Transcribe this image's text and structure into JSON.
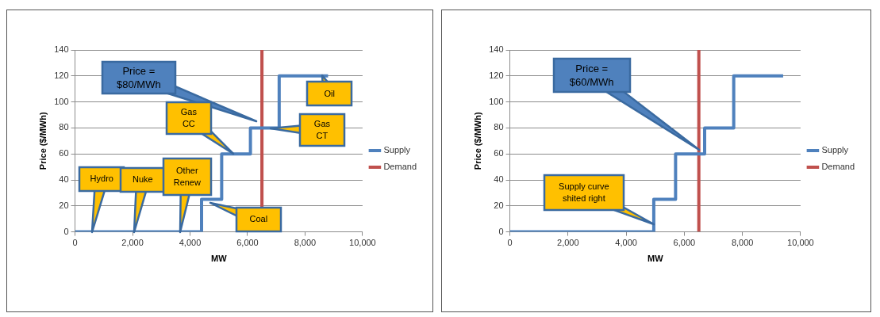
{
  "chart_data": [
    {
      "type": "step",
      "xlabel": "MW",
      "ylabel": "Price ($/MWh)",
      "xlim": [
        0,
        10000
      ],
      "ylim": [
        0,
        140
      ],
      "xticks": [
        0,
        {
          "value": 2000,
          "label": "2,000"
        },
        {
          "value": 4000,
          "label": "4,000"
        },
        {
          "value": 6000,
          "label": "6,000"
        },
        {
          "value": 8000,
          "label": "8,000"
        },
        {
          "value": 10000,
          "label": "10,000"
        }
      ],
      "yticks": [
        0,
        20,
        40,
        60,
        80,
        100,
        120,
        140
      ],
      "grid": "y",
      "legend": "right",
      "marker": "none",
      "series": [
        {
          "name": "Supply",
          "color": "#4f81bd",
          "x": [
            0,
            4400,
            5100,
            6100,
            7100,
            8800
          ],
          "values": [
            0,
            25,
            60,
            80,
            120,
            120
          ]
        },
        {
          "name": "Demand",
          "type": "line",
          "color": "#c0504d",
          "x": [
            6500,
            6500
          ],
          "values": [
            0,
            140
          ]
        }
      ],
      "annotations": [
        "Price =\n$80/MWh",
        "Hydro",
        "Nuke",
        "Other\nRenew",
        "Gas\nCC",
        "Gas\nCT",
        "Coal",
        "Oil"
      ]
    },
    {
      "type": "step",
      "xlabel": "MW",
      "ylabel": "Price ($/MWh)",
      "xlim": [
        0,
        10000
      ],
      "ylim": [
        0,
        140
      ],
      "xticks": [
        0,
        {
          "value": 2000,
          "label": "2,000"
        },
        {
          "value": 4000,
          "label": "4,000"
        },
        {
          "value": 6000,
          "label": "6,000"
        },
        {
          "value": 8000,
          "label": "8,000"
        },
        {
          "value": 10000,
          "label": "10,000"
        }
      ],
      "yticks": [
        0,
        20,
        40,
        60,
        80,
        100,
        120,
        140
      ],
      "grid": "y",
      "legend": "right",
      "marker": "none",
      "series": [
        {
          "name": "Supply",
          "color": "#4f81bd",
          "x": [
            0,
            4950,
            5700,
            6700,
            7700,
            9400
          ],
          "values": [
            0,
            25,
            60,
            80,
            120,
            120
          ]
        },
        {
          "name": "Demand",
          "type": "line",
          "color": "#c0504d",
          "x": [
            6500,
            6500
          ],
          "values": [
            0,
            140
          ]
        }
      ],
      "annotations": [
        "Price =\n$60/MWh",
        "Supply curve\nshited right"
      ]
    }
  ]
}
